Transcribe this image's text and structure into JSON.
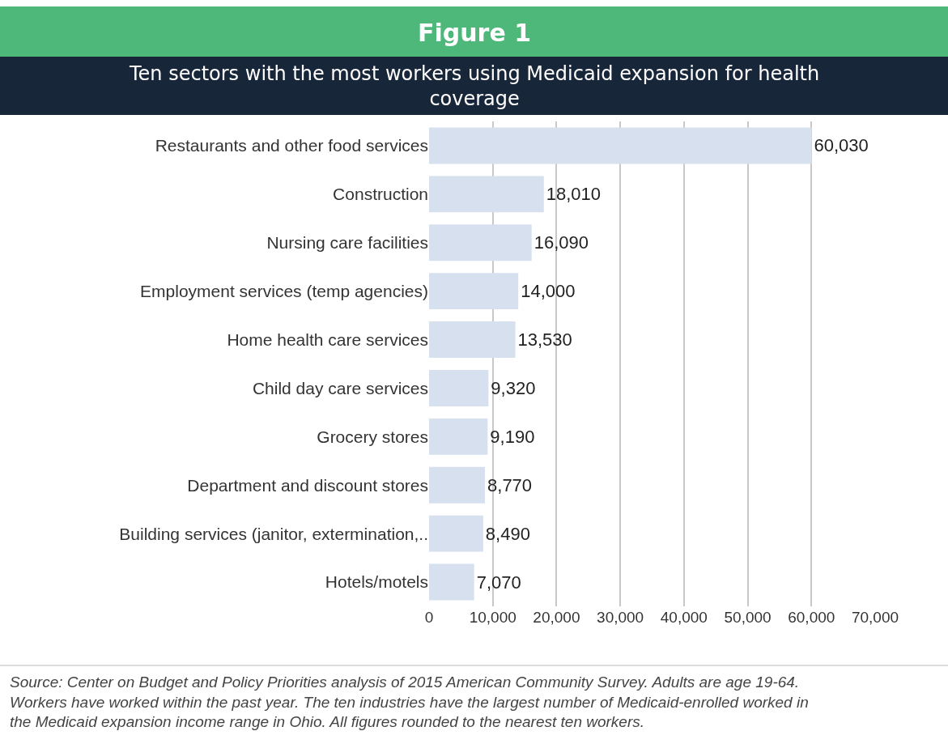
{
  "chart_data": {
    "type": "bar",
    "orientation": "horizontal",
    "title": "Figure 1",
    "subtitle": "Ten sectors with the most workers using Medicaid expansion for health coverage",
    "categories": [
      "Restaurants and other food services",
      "Construction",
      "Nursing care facilities",
      "Employment services (temp agencies)",
      "Home health care services",
      "Child day care services",
      "Grocery stores",
      "Department and discount stores",
      "Building services (janitor, extermination,..",
      "Hotels/motels"
    ],
    "values": [
      60030,
      18010,
      16090,
      14000,
      13530,
      9320,
      9190,
      8770,
      8490,
      7070
    ],
    "value_labels": [
      "60,030",
      "18,010",
      "16,090",
      "14,000",
      "13,530",
      "9,320",
      "9,190",
      "8,770",
      "8,490",
      "7,070"
    ],
    "color": "#d6e0ef",
    "xlim": [
      0,
      70000
    ],
    "xticks": [
      0,
      {
        "value": 10000,
        "label": "10,000"
      },
      {
        "value": 20000,
        "label": "20,000"
      },
      {
        "value": 30000,
        "label": "30,000"
      },
      {
        "value": 40000,
        "label": "40,000"
      },
      {
        "value": 50000,
        "label": "50,000"
      },
      {
        "value": 60000,
        "label": "60,000"
      },
      {
        "value": 70000,
        "label": "70,000"
      }
    ],
    "grid": "x",
    "legend": false,
    "annotations": [
      "Source: Center on Budget and Policy Priorities analysis of 2015 American Community Survey. Adults are age 19-64. Workers have worked within the past year. The ten industries have the largest number of Medicaid-enrolled worked in the Medicaid expansion income range in Ohio. All figures rounded to the nearest ten workers."
    ]
  }
}
